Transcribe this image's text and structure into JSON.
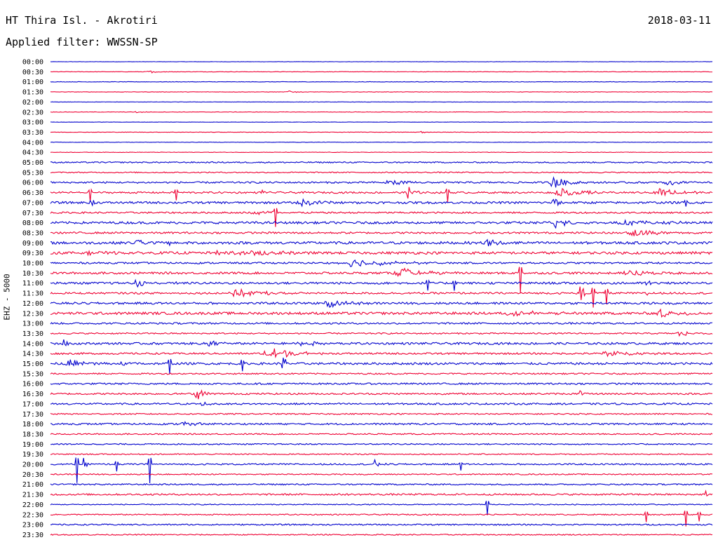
{
  "header": {
    "station": "HT Thira Isl. - Akrotiri",
    "date": "2018-03-11",
    "filter": "Applied filter: WWSSN-SP"
  },
  "axis": {
    "ylabel": "EHZ - 5000"
  },
  "colors": {
    "blue": "#0000cc",
    "red": "#ee0033"
  },
  "chart_data": {
    "type": "line",
    "title": "",
    "ylabel": "EHZ - 5000",
    "trace_colors": [
      "blue",
      "red"
    ],
    "rows": [
      {
        "time": "00:00",
        "color": "blue",
        "noise": 0.2,
        "events": []
      },
      {
        "time": "00:30",
        "color": "red",
        "noise": 0.3,
        "events": [
          {
            "t": 0.15,
            "amp": 1.5,
            "dur": 0.05
          }
        ]
      },
      {
        "time": "01:00",
        "color": "blue",
        "noise": 0.3,
        "events": []
      },
      {
        "time": "01:30",
        "color": "red",
        "noise": 0.3,
        "events": [
          {
            "t": 0.36,
            "amp": 1.5,
            "dur": 0.03
          }
        ]
      },
      {
        "time": "02:00",
        "color": "blue",
        "noise": 0.2,
        "events": []
      },
      {
        "time": "02:30",
        "color": "red",
        "noise": 0.3,
        "events": [
          {
            "t": 0.13,
            "amp": 1.5,
            "dur": 0.03
          }
        ]
      },
      {
        "time": "03:00",
        "color": "blue",
        "noise": 0.2,
        "events": []
      },
      {
        "time": "03:30",
        "color": "red",
        "noise": 0.3,
        "events": [
          {
            "t": 0.56,
            "amp": 1.5,
            "dur": 0.02
          }
        ]
      },
      {
        "time": "04:00",
        "color": "blue",
        "noise": 0.3,
        "events": []
      },
      {
        "time": "04:30",
        "color": "red",
        "noise": 0.3,
        "events": []
      },
      {
        "time": "05:00",
        "color": "blue",
        "noise": 0.9,
        "events": []
      },
      {
        "time": "05:30",
        "color": "red",
        "noise": 0.8,
        "events": []
      },
      {
        "time": "06:00",
        "color": "blue",
        "noise": 1.2,
        "events": [
          {
            "t": 0.51,
            "amp": 4,
            "dur": 0.06
          },
          {
            "t": 0.76,
            "amp": 9,
            "dur": 0.05
          },
          {
            "t": 0.93,
            "amp": 4,
            "dur": 0.06
          }
        ]
      },
      {
        "time": "06:30",
        "color": "red",
        "noise": 1.2,
        "events": [
          {
            "t": 0.06,
            "amp": 14,
            "dur": 0.005
          },
          {
            "t": 0.19,
            "amp": 12,
            "dur": 0.005
          },
          {
            "t": 0.32,
            "amp": 6,
            "dur": 0.01
          },
          {
            "t": 0.54,
            "amp": 10,
            "dur": 0.02
          },
          {
            "t": 0.6,
            "amp": 13,
            "dur": 0.005
          },
          {
            "t": 0.77,
            "amp": 6,
            "dur": 0.08
          },
          {
            "t": 0.92,
            "amp": 7,
            "dur": 0.08
          }
        ]
      },
      {
        "time": "07:00",
        "color": "blue",
        "noise": 1.5,
        "events": [
          {
            "t": 0.06,
            "amp": 16,
            "dur": 0.01
          },
          {
            "t": 0.38,
            "amp": 5,
            "dur": 0.09
          },
          {
            "t": 0.76,
            "amp": 10,
            "dur": 0.02
          },
          {
            "t": 0.96,
            "amp": 6,
            "dur": 0.005
          }
        ]
      },
      {
        "time": "07:30",
        "color": "red",
        "noise": 1.2,
        "events": [
          {
            "t": 0.34,
            "amp": 22,
            "dur": 0.005
          },
          {
            "t": 0.31,
            "amp": 3,
            "dur": 0.1
          }
        ]
      },
      {
        "time": "08:00",
        "color": "blue",
        "noise": 1.6,
        "events": [
          {
            "t": 0.76,
            "amp": 8,
            "dur": 0.05
          },
          {
            "t": 0.87,
            "amp": 4,
            "dur": 0.1
          }
        ]
      },
      {
        "time": "08:30",
        "color": "red",
        "noise": 1.3,
        "events": [
          {
            "t": 0.88,
            "amp": 6,
            "dur": 0.08
          }
        ]
      },
      {
        "time": "09:00",
        "color": "blue",
        "noise": 1.8,
        "events": [
          {
            "t": 0.13,
            "amp": 7,
            "dur": 0.03
          },
          {
            "t": 0.18,
            "amp": 3,
            "dur": 0.03
          },
          {
            "t": 0.66,
            "amp": 7,
            "dur": 0.06
          }
        ]
      },
      {
        "time": "09:30",
        "color": "red",
        "noise": 1.8,
        "events": [
          {
            "t": 0.05,
            "amp": 3,
            "dur": 0.05
          },
          {
            "t": 0.25,
            "amp": 4,
            "dur": 0.08
          },
          {
            "t": 0.31,
            "amp": 4,
            "dur": 0.08
          }
        ]
      },
      {
        "time": "10:00",
        "color": "blue",
        "noise": 1.2,
        "events": [
          {
            "t": 0.45,
            "amp": 6,
            "dur": 0.14
          }
        ]
      },
      {
        "time": "10:30",
        "color": "red",
        "noise": 1.5,
        "events": [
          {
            "t": 0.53,
            "amp": 6,
            "dur": 0.1
          },
          {
            "t": 0.71,
            "amp": 28,
            "dur": 0.005
          },
          {
            "t": 0.87,
            "amp": 5,
            "dur": 0.08
          }
        ]
      },
      {
        "time": "11:00",
        "color": "blue",
        "noise": 1.5,
        "events": [
          {
            "t": 0.13,
            "amp": 8,
            "dur": 0.03
          },
          {
            "t": 0.18,
            "amp": 4,
            "dur": 0.02
          },
          {
            "t": 0.57,
            "amp": 12,
            "dur": 0.005
          },
          {
            "t": 0.61,
            "amp": 10,
            "dur": 0.005
          },
          {
            "t": 0.9,
            "amp": 4,
            "dur": 0.03
          }
        ]
      },
      {
        "time": "11:30",
        "color": "red",
        "noise": 1.3,
        "events": [
          {
            "t": 0.28,
            "amp": 5,
            "dur": 0.12
          },
          {
            "t": 0.8,
            "amp": 22,
            "dur": 0.01
          },
          {
            "t": 0.82,
            "amp": 20,
            "dur": 0.005
          },
          {
            "t": 0.84,
            "amp": 16,
            "dur": 0.005
          },
          {
            "t": 0.9,
            "amp": 6,
            "dur": 0.01
          }
        ]
      },
      {
        "time": "12:00",
        "color": "blue",
        "noise": 1.5,
        "events": [
          {
            "t": 0.42,
            "amp": 7,
            "dur": 0.06
          }
        ]
      },
      {
        "time": "12:30",
        "color": "red",
        "noise": 1.8,
        "events": [
          {
            "t": 0.7,
            "amp": 4,
            "dur": 0.12
          },
          {
            "t": 0.92,
            "amp": 7,
            "dur": 0.05
          }
        ]
      },
      {
        "time": "13:00",
        "color": "blue",
        "noise": 1.2,
        "events": []
      },
      {
        "time": "13:30",
        "color": "red",
        "noise": 1.0,
        "events": [
          {
            "t": 0.95,
            "amp": 5,
            "dur": 0.03
          }
        ]
      },
      {
        "time": "14:00",
        "color": "blue",
        "noise": 1.5,
        "events": [
          {
            "t": 0.02,
            "amp": 6,
            "dur": 0.02
          },
          {
            "t": 0.24,
            "amp": 5,
            "dur": 0.04
          },
          {
            "t": 0.38,
            "amp": 4,
            "dur": 0.06
          }
        ]
      },
      {
        "time": "14:30",
        "color": "red",
        "noise": 1.3,
        "events": [
          {
            "t": 0.33,
            "amp": 10,
            "dur": 0.08
          },
          {
            "t": 0.84,
            "amp": 5,
            "dur": 0.08
          }
        ]
      },
      {
        "time": "15:00",
        "color": "blue",
        "noise": 1.5,
        "events": [
          {
            "t": 0.03,
            "amp": 5,
            "dur": 0.08
          },
          {
            "t": 0.11,
            "amp": 4,
            "dur": 0.03
          },
          {
            "t": 0.18,
            "amp": 16,
            "dur": 0.005
          },
          {
            "t": 0.29,
            "amp": 12,
            "dur": 0.005
          },
          {
            "t": 0.35,
            "amp": 22,
            "dur": 0.01
          }
        ]
      },
      {
        "time": "15:30",
        "color": "red",
        "noise": 1.0,
        "events": []
      },
      {
        "time": "16:00",
        "color": "blue",
        "noise": 1.2,
        "events": []
      },
      {
        "time": "16:30",
        "color": "red",
        "noise": 1.2,
        "events": [
          {
            "t": 0.22,
            "amp": 14,
            "dur": 0.02
          },
          {
            "t": 0.8,
            "amp": 5,
            "dur": 0.01
          }
        ]
      },
      {
        "time": "17:00",
        "color": "blue",
        "noise": 1.2,
        "events": [
          {
            "t": 0.23,
            "amp": 3,
            "dur": 0.04
          }
        ]
      },
      {
        "time": "17:30",
        "color": "red",
        "noise": 0.9,
        "events": []
      },
      {
        "time": "18:00",
        "color": "blue",
        "noise": 1.2,
        "events": [
          {
            "t": 0.2,
            "amp": 3,
            "dur": 0.06
          }
        ]
      },
      {
        "time": "18:30",
        "color": "red",
        "noise": 0.9,
        "events": []
      },
      {
        "time": "19:00",
        "color": "blue",
        "noise": 0.9,
        "events": []
      },
      {
        "time": "19:30",
        "color": "red",
        "noise": 0.8,
        "events": []
      },
      {
        "time": "20:00",
        "color": "blue",
        "noise": 1.0,
        "events": [
          {
            "t": 0.04,
            "amp": 26,
            "dur": 0.005
          },
          {
            "t": 0.05,
            "amp": 8,
            "dur": 0.01
          },
          {
            "t": 0.1,
            "amp": 10,
            "dur": 0.005
          },
          {
            "t": 0.15,
            "amp": 26,
            "dur": 0.005
          },
          {
            "t": 0.49,
            "amp": 6,
            "dur": 0.02
          },
          {
            "t": 0.62,
            "amp": 8,
            "dur": 0.005
          }
        ]
      },
      {
        "time": "20:30",
        "color": "red",
        "noise": 0.8,
        "events": []
      },
      {
        "time": "21:00",
        "color": "blue",
        "noise": 1.0,
        "events": []
      },
      {
        "time": "21:30",
        "color": "red",
        "noise": 1.2,
        "events": [
          {
            "t": 0.99,
            "amp": 5,
            "dur": 0.01
          }
        ]
      },
      {
        "time": "22:00",
        "color": "blue",
        "noise": 0.7,
        "events": [
          {
            "t": 0.66,
            "amp": 14,
            "dur": 0.005
          }
        ]
      },
      {
        "time": "22:30",
        "color": "red",
        "noise": 0.8,
        "events": [
          {
            "t": 0.9,
            "amp": 10,
            "dur": 0.005
          },
          {
            "t": 0.96,
            "amp": 16,
            "dur": 0.005
          },
          {
            "t": 0.98,
            "amp": 10,
            "dur": 0.005
          }
        ]
      },
      {
        "time": "23:00",
        "color": "blue",
        "noise": 1.0,
        "events": []
      },
      {
        "time": "23:30",
        "color": "red",
        "noise": 0.8,
        "events": []
      }
    ]
  }
}
